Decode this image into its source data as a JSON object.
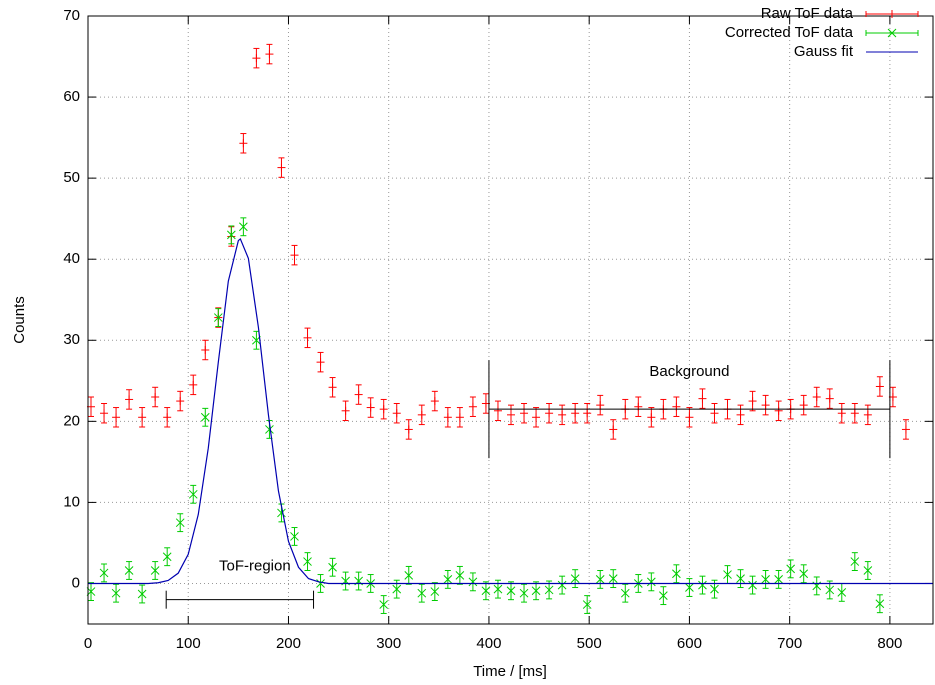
{
  "chart_data": {
    "type": "errorbar",
    "xlabel": "Time / [ms]",
    "ylabel": "Counts",
    "xlim": [
      0,
      843
    ],
    "ylim": [
      -5,
      70
    ],
    "xticks": [
      0,
      100,
      200,
      300,
      400,
      500,
      600,
      700,
      800
    ],
    "yticks": [
      0,
      10,
      20,
      30,
      40,
      50,
      60,
      70
    ],
    "grid": true,
    "legend": "top-right",
    "series": [
      {
        "name": "Raw ToF data",
        "color": "#ff0000",
        "marker": "+",
        "error": 1.2,
        "x": [
          3,
          16,
          28,
          41,
          54,
          67,
          79,
          92,
          105,
          117,
          130,
          143,
          155,
          168,
          181,
          193,
          206,
          219,
          232,
          244,
          257,
          270,
          282,
          295,
          308,
          320,
          333,
          346,
          359,
          371,
          384,
          397,
          409,
          422,
          435,
          447,
          460,
          473,
          486,
          498,
          511,
          524,
          536,
          549,
          562,
          574,
          587,
          600,
          613,
          625,
          638,
          651,
          663,
          676,
          689,
          701,
          714,
          727,
          740,
          752,
          765,
          778,
          790,
          803,
          816
        ],
        "values": [
          21.8,
          21,
          20.5,
          22.7,
          20.5,
          23,
          20.5,
          22.5,
          24.5,
          28.8,
          32.8,
          42.8,
          54.3,
          64.8,
          65.3,
          51.3,
          40.5,
          30.3,
          27.3,
          24.2,
          21.3,
          23.3,
          21.7,
          21.5,
          21,
          19,
          20.8,
          22.5,
          20.5,
          20.5,
          21.8,
          22.2,
          21.3,
          20.8,
          21,
          20.5,
          21,
          20.8,
          21,
          21,
          22,
          19,
          21.5,
          21.8,
          20.5,
          21.5,
          21.8,
          20.5,
          22.8,
          21,
          21.5,
          20.8,
          22.5,
          22,
          21.3,
          21.5,
          22,
          23,
          22.8,
          21,
          21,
          20.8,
          24.3,
          23,
          19
        ]
      },
      {
        "name": "Corrected ToF data",
        "color": "#00cc00",
        "marker": "x",
        "error": 1.1,
        "x": [
          3,
          16,
          28,
          41,
          54,
          67,
          79,
          92,
          105,
          117,
          130,
          143,
          155,
          168,
          181,
          193,
          206,
          219,
          232,
          244,
          257,
          270,
          282,
          295,
          308,
          320,
          333,
          346,
          359,
          371,
          384,
          397,
          409,
          422,
          435,
          447,
          460,
          473,
          486,
          498,
          511,
          524,
          536,
          549,
          562,
          574,
          587,
          600,
          613,
          625,
          638,
          651,
          663,
          676,
          689,
          701,
          714,
          727,
          740,
          752,
          765,
          778,
          790
        ],
        "values": [
          -1,
          1.3,
          -1.2,
          1.6,
          -1.3,
          1.6,
          3.3,
          7.5,
          11,
          20.5,
          32.8,
          43,
          44,
          30,
          19,
          8.7,
          5.8,
          2.7,
          0,
          2,
          0.3,
          0.3,
          0,
          -2.6,
          -0.7,
          1,
          -1.2,
          -1,
          0.5,
          1,
          0.2,
          -0.9,
          -0.7,
          -0.9,
          -1.2,
          -0.9,
          -0.8,
          -0.2,
          0.6,
          -2.6,
          0.5,
          0.6,
          -1.2,
          0,
          0.2,
          -1.5,
          1.2,
          -0.5,
          -0.2,
          -0.7,
          1.1,
          0.6,
          -0.2,
          0.5,
          0.5,
          1.8,
          1.2,
          -0.3,
          -0.8,
          -1.1,
          2.7,
          1.6,
          -2.5
        ]
      },
      {
        "name": "Gauss fit",
        "color": "#0000b0",
        "marker": "line",
        "x": [
          0,
          60,
          70,
          80,
          90,
          100,
          110,
          120,
          130,
          140,
          150,
          152,
          160,
          170,
          180,
          190,
          200,
          210,
          220,
          230,
          240,
          843
        ],
        "values": [
          0,
          0,
          0.09,
          0.37,
          1.27,
          3.6,
          8.5,
          16.7,
          27.3,
          37.3,
          42.3,
          42.5,
          40.1,
          31.6,
          20.8,
          11.4,
          5.2,
          2,
          0.6,
          0.2,
          0,
          0
        ]
      }
    ],
    "annotations": [
      {
        "text": "ToF-region",
        "x": [
          78,
          225
        ],
        "y": -2
      },
      {
        "text": "Background",
        "x": [
          400,
          800
        ],
        "y": 21.5
      }
    ]
  }
}
